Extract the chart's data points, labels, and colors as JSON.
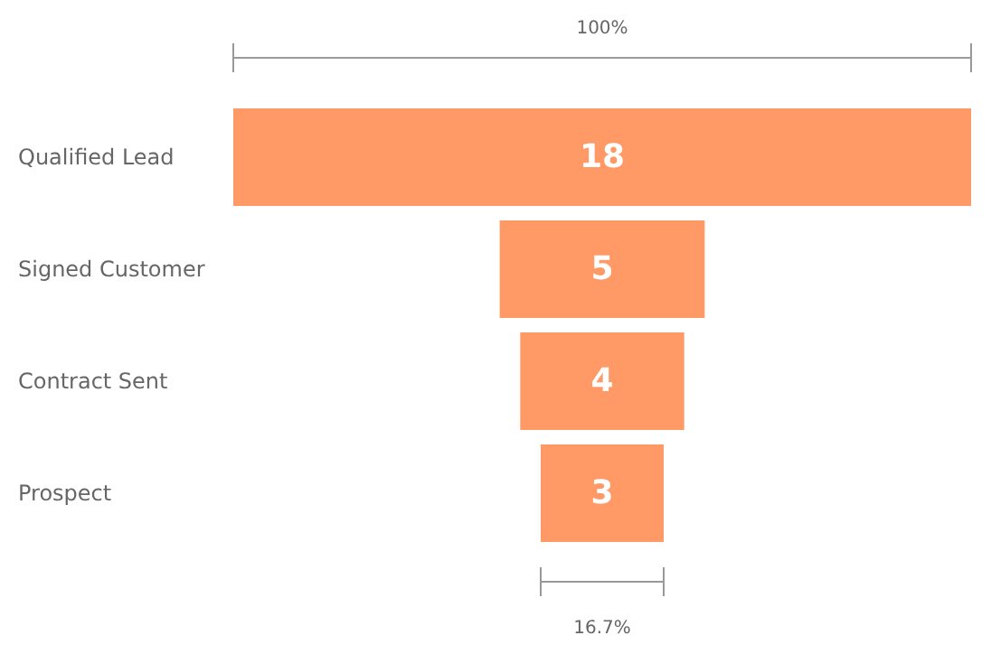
{
  "chart_data": {
    "type": "other",
    "categories": [
      "Qualified Lead",
      "Signed Customer",
      "Contract Sent",
      "Prospect"
    ],
    "values": [
      18,
      5,
      4,
      3
    ],
    "color": "#ff9966",
    "data_labels": true,
    "annotations": [
      "100%",
      "16.7%"
    ]
  }
}
